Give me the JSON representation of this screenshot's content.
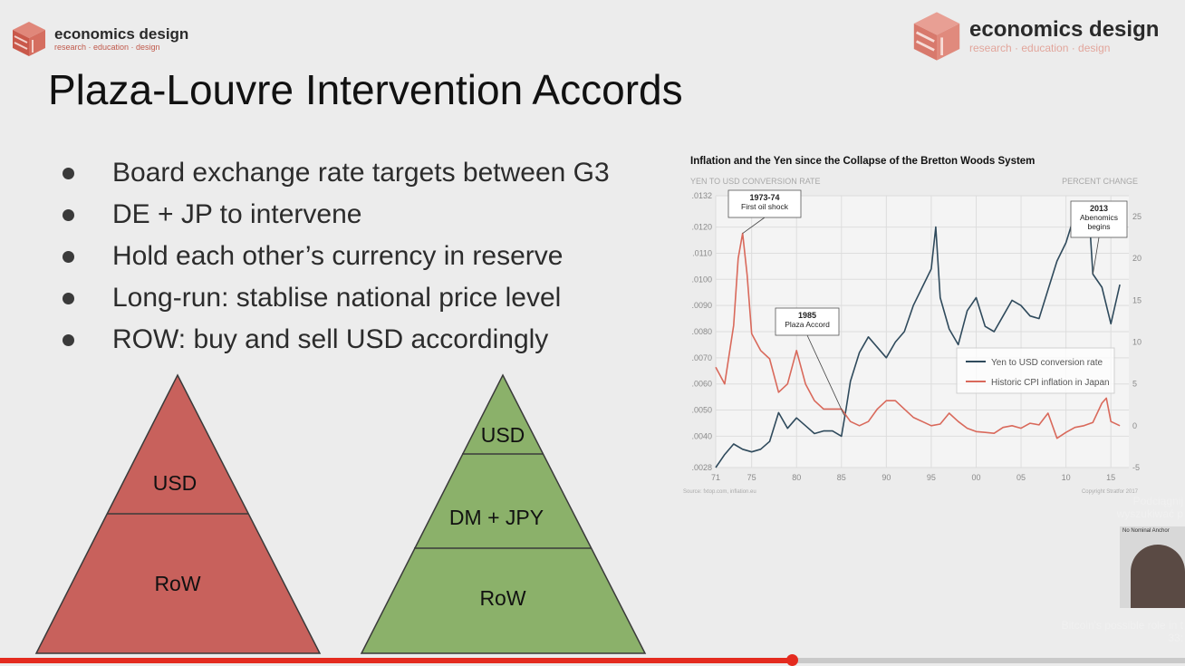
{
  "brand": {
    "name": "economics design",
    "tagline": "research · education · design",
    "accent": "#d9685a"
  },
  "slide": {
    "title": "Plaza-Louvre Intervention Accords",
    "bullets": [
      "Board exchange rate targets between G3",
      "DE + JP to intervene",
      "Hold each other’s currency in reserve",
      "Long-run: stablise national price level",
      "ROW: buy and sell USD accordingly"
    ],
    "pyramid_left": {
      "color": "#c8615c",
      "levels": [
        "USD",
        "RoW"
      ]
    },
    "pyramid_right": {
      "color": "#8bb16a",
      "levels": [
        "USD",
        "DM + JPY",
        "RoW"
      ]
    }
  },
  "chart_data": {
    "type": "line",
    "title": "Inflation and the Yen since the Collapse of the Bretton Woods System",
    "left_axis_label": "YEN TO USD CONVERSION RATE",
    "right_axis_label": "PERCENT CHANGE",
    "left_ticks": [
      ".0132",
      ".0120",
      ".0110",
      ".0100",
      ".0090",
      ".0080",
      ".0070",
      ".0060",
      ".0050",
      ".0040",
      ".0028"
    ],
    "right_ticks": [
      "25",
      "20",
      "15",
      "10",
      "5",
      "0",
      "-5"
    ],
    "x_ticks": [
      "71",
      "75",
      "80",
      "85",
      "90",
      "95",
      "00",
      "05",
      "10",
      "15"
    ],
    "xlim": [
      1971,
      2017
    ],
    "ylim_left": [
      0.0028,
      0.0132
    ],
    "ylim_right": [
      -5,
      27.5
    ],
    "legend_position": "center-right",
    "series": [
      {
        "name": "Yen to USD conversion rate",
        "axis": "left",
        "color": "#2f4a5c",
        "x": [
          1971,
          1972,
          1973,
          1974,
          1975,
          1976,
          1977,
          1978,
          1979,
          1980,
          1981,
          1982,
          1983,
          1984,
          1985,
          1985.5,
          1986,
          1987,
          1988,
          1989,
          1990,
          1991,
          1992,
          1993,
          1994,
          1995,
          1995.5,
          1996,
          1997,
          1998,
          1999,
          2000,
          2001,
          2002,
          2003,
          2004,
          2005,
          2006,
          2007,
          2008,
          2009,
          2010,
          2011,
          2012,
          2012.7,
          2013,
          2014,
          2015,
          2016
        ],
        "y": [
          0.0028,
          0.0033,
          0.0037,
          0.0035,
          0.0034,
          0.0035,
          0.0038,
          0.0049,
          0.0043,
          0.0047,
          0.0044,
          0.0041,
          0.0042,
          0.0042,
          0.004,
          0.005,
          0.0061,
          0.0072,
          0.0078,
          0.0074,
          0.007,
          0.0076,
          0.008,
          0.009,
          0.0097,
          0.0104,
          0.012,
          0.0093,
          0.0081,
          0.0075,
          0.0088,
          0.0093,
          0.0082,
          0.008,
          0.0086,
          0.0092,
          0.009,
          0.0086,
          0.0085,
          0.0096,
          0.0107,
          0.0114,
          0.0125,
          0.0127,
          0.0118,
          0.0102,
          0.0097,
          0.0083,
          0.0098
        ]
      },
      {
        "name": "Historic CPI inflation in Japan",
        "axis": "right",
        "color": "#d9695b",
        "x": [
          1971,
          1972,
          1973,
          1973.5,
          1974,
          1974.5,
          1975,
          1976,
          1977,
          1978,
          1979,
          1980,
          1981,
          1982,
          1983,
          1984,
          1985,
          1986,
          1987,
          1988,
          1989,
          1990,
          1991,
          1992,
          1993,
          1994,
          1995,
          1996,
          1997,
          1998,
          1999,
          2000,
          2001,
          2002,
          2003,
          2004,
          2005,
          2006,
          2007,
          2008,
          2009,
          2010,
          2011,
          2012,
          2013,
          2014,
          2014.5,
          2015,
          2016
        ],
        "y": [
          7,
          5,
          12,
          20,
          23,
          18,
          11,
          9,
          8,
          4,
          5,
          9,
          5,
          3,
          2,
          2,
          2,
          0.5,
          0,
          0.5,
          2,
          3,
          3,
          2,
          1,
          0.5,
          0,
          0.2,
          1.5,
          0.5,
          -0.3,
          -0.7,
          -0.8,
          -0.9,
          -0.2,
          0,
          -0.3,
          0.3,
          0.1,
          1.5,
          -1.5,
          -0.8,
          -0.2,
          0,
          0.4,
          2.7,
          3.3,
          0.5,
          0
        ]
      }
    ],
    "annotations": [
      {
        "year": "1973-74",
        "text": "First oil shock"
      },
      {
        "year": "1985",
        "text": "Plaza Accord"
      },
      {
        "year": "2013",
        "text": "Abenomics begins"
      }
    ],
    "source": "Source: fxtop.com, inflation.eu",
    "copyright": "Copyright Stratfor 2017"
  },
  "video": {
    "overlay_top": [
      "Podciągnij",
      "wyszukiwać p"
    ],
    "overlay_bottom": [
      "Bitcoin's possible role in t",
      "33:"
    ],
    "thumbnail_text": "No Nominal Anchor",
    "progress_fraction": 0.668
  }
}
